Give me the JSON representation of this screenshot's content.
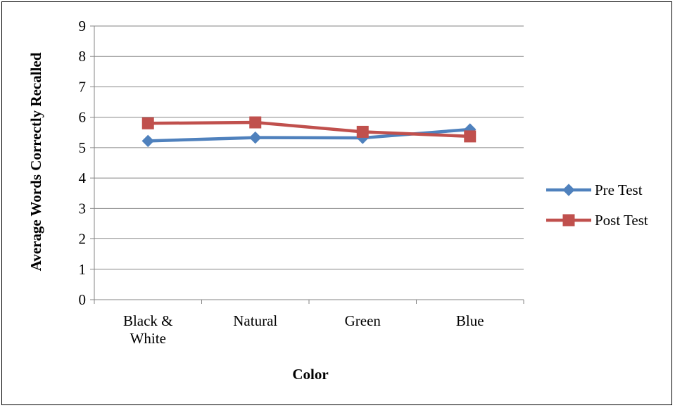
{
  "chart_data": {
    "type": "line",
    "categories": [
      [
        "Black &",
        "White"
      ],
      [
        "Natural"
      ],
      [
        "Green"
      ],
      [
        "Blue"
      ]
    ],
    "series": [
      {
        "name": "Pre Test",
        "values": [
          5.22,
          5.33,
          5.32,
          5.6
        ],
        "color": "#4F81BD",
        "marker": "diamond"
      },
      {
        "name": "Post Test",
        "values": [
          5.8,
          5.83,
          5.52,
          5.37
        ],
        "color": "#C0504D",
        "marker": "square"
      }
    ],
    "title": "",
    "xlabel": "Color",
    "ylabel": "Average Words Correctly Recalled",
    "ylim": [
      0,
      9
    ],
    "yticks": [
      "0",
      "1",
      "2",
      "3",
      "4",
      "5",
      "6",
      "7",
      "8",
      "9"
    ],
    "grid": true,
    "legend": "right"
  }
}
